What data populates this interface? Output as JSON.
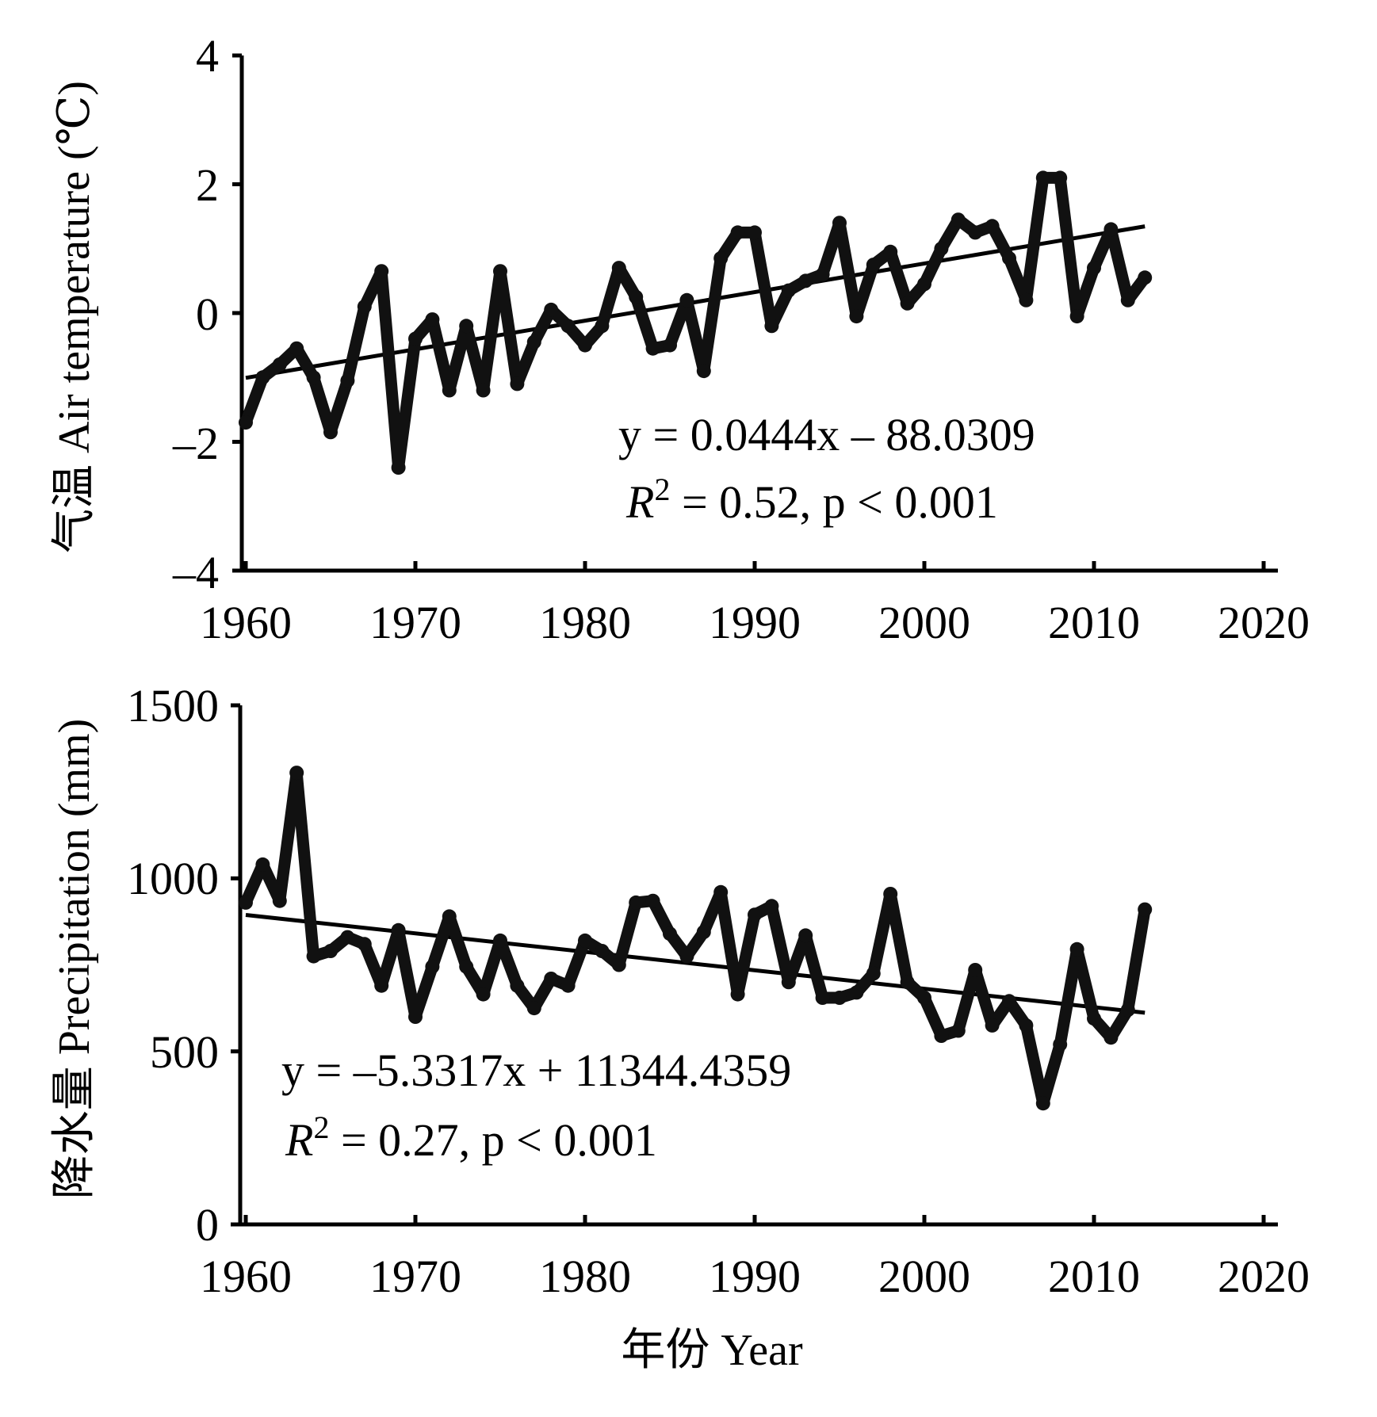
{
  "chart_data": [
    {
      "type": "line",
      "ylabel": "气温 Air temperature (℃)",
      "xlabel": "",
      "xlim": [
        1960,
        2020
      ],
      "ylim": [
        -4,
        4
      ],
      "x_ticks": [
        "1960",
        "1970",
        "1980",
        "1990",
        "2000",
        "2010",
        "2020"
      ],
      "y_ticks": [
        "4",
        "2",
        "0",
        "–2",
        "–4"
      ],
      "x": [
        1960,
        1961,
        1962,
        1963,
        1964,
        1965,
        1966,
        1967,
        1968,
        1969,
        1970,
        1971,
        1972,
        1973,
        1974,
        1975,
        1976,
        1977,
        1978,
        1979,
        1980,
        1981,
        1982,
        1983,
        1984,
        1985,
        1986,
        1987,
        1988,
        1989,
        1990,
        1991,
        1992,
        1993,
        1994,
        1995,
        1996,
        1997,
        1998,
        1999,
        2000,
        2001,
        2002,
        2003,
        2004,
        2005,
        2006,
        2007,
        2008,
        2009,
        2010,
        2011,
        2012,
        2013
      ],
      "series": [
        {
          "values": [
            -1.7,
            -1.0,
            -0.8,
            -0.55,
            -1.0,
            -1.85,
            -1.05,
            0.1,
            0.65,
            -2.4,
            -0.4,
            -0.1,
            -1.2,
            -0.2,
            -1.2,
            0.65,
            -1.1,
            -0.45,
            0.05,
            -0.2,
            -0.5,
            -0.2,
            0.7,
            0.25,
            -0.55,
            -0.5,
            0.2,
            -0.9,
            0.85,
            1.25,
            1.25,
            -0.2,
            0.35,
            0.5,
            0.6,
            1.4,
            -0.05,
            0.75,
            0.95,
            0.15,
            0.45,
            1.0,
            1.45,
            1.25,
            1.35,
            0.85,
            0.2,
            2.1,
            2.1,
            -0.05,
            0.7,
            1.3,
            0.2,
            0.55
          ]
        }
      ],
      "trend": {
        "slope": 0.0444,
        "intercept": -88.0309,
        "equation": "y = 0.0444x – 88.0309",
        "stats": "R2 = 0.52,  p < 0.001"
      }
    },
    {
      "type": "line",
      "ylabel": "降水量 Precipitation (mm)",
      "xlabel": "年份  Year",
      "xlim": [
        1960,
        2020
      ],
      "ylim": [
        0,
        1500
      ],
      "x_ticks": [
        "1960",
        "1970",
        "1980",
        "1990",
        "2000",
        "2010",
        "2020"
      ],
      "y_ticks": [
        "1500",
        "1000",
        "500",
        "0"
      ],
      "x": [
        1960,
        1961,
        1962,
        1963,
        1964,
        1965,
        1966,
        1967,
        1968,
        1969,
        1970,
        1971,
        1972,
        1973,
        1974,
        1975,
        1976,
        1977,
        1978,
        1979,
        1980,
        1981,
        1982,
        1983,
        1984,
        1985,
        1986,
        1987,
        1988,
        1989,
        1990,
        1991,
        1992,
        1993,
        1994,
        1995,
        1996,
        1997,
        1998,
        1999,
        2000,
        2001,
        2002,
        2003,
        2004,
        2005,
        2006,
        2007,
        2008,
        2009,
        2010,
        2011,
        2012,
        2013
      ],
      "series": [
        {
          "values": [
            930,
            1040,
            935,
            1305,
            775,
            790,
            830,
            810,
            690,
            850,
            600,
            745,
            890,
            745,
            665,
            820,
            690,
            625,
            710,
            690,
            820,
            790,
            750,
            930,
            935,
            840,
            775,
            845,
            960,
            665,
            895,
            920,
            700,
            835,
            655,
            655,
            670,
            725,
            955,
            700,
            655,
            545,
            560,
            735,
            575,
            645,
            575,
            350,
            520,
            795,
            595,
            540,
            620,
            910
          ]
        }
      ],
      "trend": {
        "slope": -5.3317,
        "intercept": 11344.4359,
        "equation": "y = –5.3317x + 11344.4359",
        "stats": "R2 = 0.27,  p < 0.001"
      }
    }
  ]
}
